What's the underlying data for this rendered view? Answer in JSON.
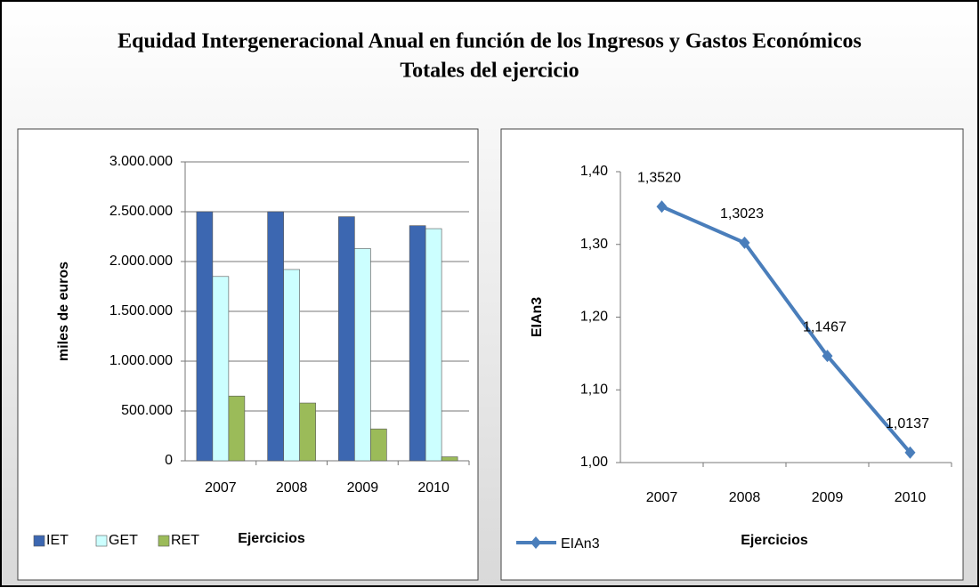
{
  "title": [
    "Equidad Intergeneracional Anual en función de los Ingresos y Gastos Económicos",
    "Totales del ejercicio"
  ],
  "chart_data": [
    {
      "type": "bar",
      "ylabel": "miles de euros",
      "xlabel": "Ejercicios",
      "categories": [
        "2007",
        "2008",
        "2009",
        "2010"
      ],
      "series": [
        {
          "name": "IET",
          "color": "#3c67b1",
          "values": [
            2500000,
            2500000,
            2450000,
            2360000
          ]
        },
        {
          "name": "GET",
          "color": "#ccffff",
          "values": [
            1850000,
            1920000,
            2130000,
            2330000
          ]
        },
        {
          "name": "RET",
          "color": "#9bbb59",
          "values": [
            650000,
            580000,
            320000,
            40000
          ]
        }
      ],
      "ylim": [
        0,
        3000000
      ],
      "yticks": [
        0,
        {
          "value": 500000,
          "label": "500.000"
        },
        {
          "value": 1000000,
          "label": "1.000.000"
        },
        {
          "value": 1500000,
          "label": "1.500.000"
        },
        {
          "value": 2000000,
          "label": "2.000.000"
        },
        {
          "value": 2500000,
          "label": "2.500.000"
        },
        {
          "value": 3000000,
          "label": "3.000.000"
        }
      ],
      "grid": true,
      "legend": "bottom"
    },
    {
      "type": "line",
      "ylabel": "EIAn3",
      "xlabel": "Ejercicios",
      "categories": [
        "2007",
        "2008",
        "2009",
        "2010"
      ],
      "series": [
        {
          "name": "EIAn3",
          "color": "#4a7ebb",
          "values": [
            1.352,
            1.3023,
            1.1467,
            1.0137
          ],
          "value_labels": [
            "1,3520",
            "1,3023",
            "1,1467",
            "1,0137"
          ]
        }
      ],
      "ylim": [
        1.0,
        1.4
      ],
      "yticks": [
        {
          "value": 1.0,
          "label": "1,00"
        },
        {
          "value": 1.1,
          "label": "1,10"
        },
        {
          "value": 1.2,
          "label": "1,20"
        },
        {
          "value": 1.3,
          "label": "1,30"
        },
        {
          "value": 1.4,
          "label": "1,40"
        }
      ],
      "grid": false,
      "legend": "bottom"
    }
  ]
}
